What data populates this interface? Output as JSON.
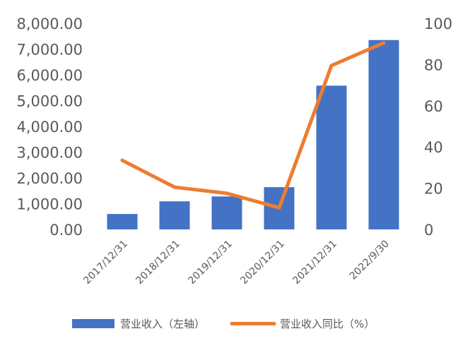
{
  "chart_data": {
    "type": "bar+line",
    "categories": [
      "2017/12/31",
      "2018/12/31",
      "2019/12/31",
      "2020/12/31",
      "2021/12/31",
      "2022/9/30"
    ],
    "series": [
      {
        "name": "营业收入（左轴）",
        "type": "bar",
        "axis": "left",
        "color": "#4472C4",
        "values": [
          600,
          1090,
          1280,
          1640,
          5580,
          7350
        ]
      },
      {
        "name": "营业收入同比（%）",
        "type": "line",
        "axis": "right",
        "color": "#ED7D31",
        "values": [
          33.5,
          20.5,
          17.5,
          10.5,
          79.5,
          90.5
        ]
      }
    ],
    "y_left": {
      "ylim": [
        0,
        8000
      ],
      "tick_labels": [
        "0.00",
        "1,000.00",
        "2,000.00",
        "3,000.00",
        "4,000.00",
        "5,000.00",
        "6,000.00",
        "7,000.00",
        "8,000.00"
      ]
    },
    "y_right": {
      "ylim": [
        0,
        100
      ],
      "tick_labels": [
        "0",
        "20",
        "40",
        "60",
        "80",
        "100"
      ]
    },
    "grid": false,
    "legend_position": "bottom"
  }
}
